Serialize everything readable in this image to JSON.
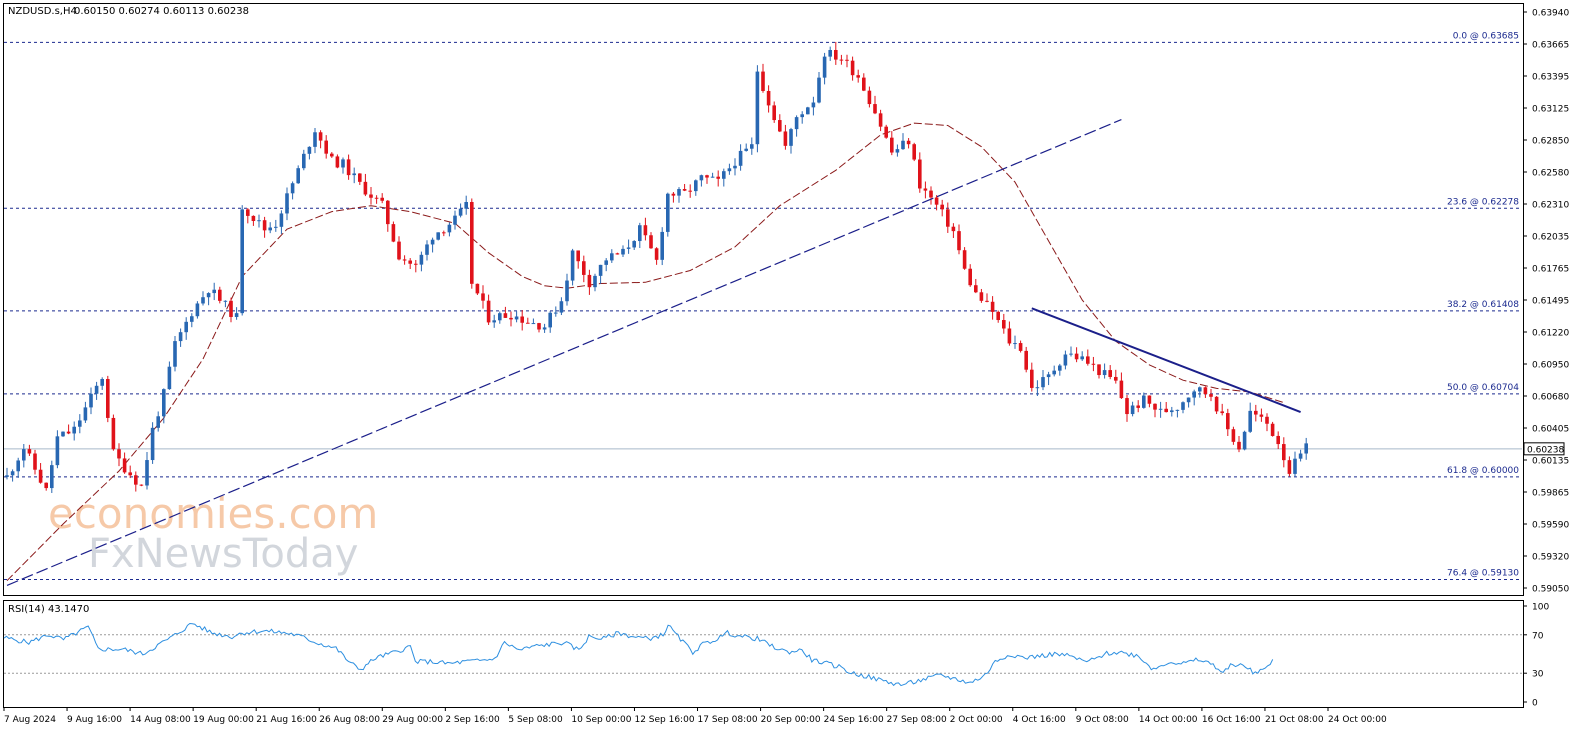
{
  "chart_data": [
    {
      "type": "candlestick",
      "header": {
        "symbol": "NZDUSD.s,H4",
        "ohlc": "0.60150 0.60274 0.60113 0.60238"
      },
      "current_price": 0.60238,
      "current_price_label": "0.60238",
      "ylim": [
        0.5899,
        0.6401
      ],
      "yticks": [
        "0.63940",
        "0.63665",
        "0.63395",
        "0.63125",
        "0.62850",
        "0.62580",
        "0.62310",
        "0.62035",
        "0.61765",
        "0.61495",
        "0.61220",
        "0.60950",
        "0.60680",
        "0.60405",
        "0.60135",
        "0.59865",
        "0.59590",
        "0.59320",
        "0.59050"
      ],
      "xticks": [
        "7 Aug 2024",
        "9 Aug 16:00",
        "14 Aug 08:00",
        "19 Aug 00:00",
        "21 Aug 16:00",
        "26 Aug 08:00",
        "29 Aug 00:00",
        "2 Sep 16:00",
        "5 Sep 08:00",
        "10 Sep 00:00",
        "12 Sep 16:00",
        "17 Sep 08:00",
        "20 Sep 00:00",
        "24 Sep 16:00",
        "27 Sep 08:00",
        "2 Oct 00:00",
        "4 Oct 16:00",
        "9 Oct 08:00",
        "14 Oct 00:00",
        "16 Oct 16:00",
        "21 Oct 08:00",
        "24 Oct 00:00"
      ],
      "fib_levels": [
        {
          "label": "0.0 @ 0.63685",
          "price": 0.63685
        },
        {
          "label": "23.6 @ 0.62278",
          "price": 0.62278
        },
        {
          "label": "38.2 @ 0.61408",
          "price": 0.61408
        },
        {
          "label": "50.0 @ 0.60704",
          "price": 0.60704
        },
        {
          "label": "61.8 @ 0.60000",
          "price": 0.6
        },
        {
          "label": "76.4 @ 0.59130",
          "price": 0.5913
        }
      ],
      "price_path": [
        [
          0,
          0.6
        ],
        [
          3,
          0.6025
        ],
        [
          7,
          0.5988
        ],
        [
          9,
          0.6033
        ],
        [
          12,
          0.604
        ],
        [
          17,
          0.6085
        ],
        [
          19,
          0.602
        ],
        [
          21,
          0.6008
        ],
        [
          24,
          0.5992
        ],
        [
          26,
          0.604
        ],
        [
          28,
          0.607
        ],
        [
          30,
          0.6112
        ],
        [
          33,
          0.614
        ],
        [
          36,
          0.616
        ],
        [
          38,
          0.615
        ],
        [
          41,
          0.6135
        ],
        [
          42,
          0.623
        ],
        [
          46,
          0.621
        ],
        [
          48,
          0.6215
        ],
        [
          52,
          0.626
        ],
        [
          55,
          0.6295
        ],
        [
          58,
          0.6268
        ],
        [
          60,
          0.6265
        ],
        [
          63,
          0.6248
        ],
        [
          67,
          0.623
        ],
        [
          70,
          0.6188
        ],
        [
          73,
          0.6178
        ],
        [
          76,
          0.6205
        ],
        [
          80,
          0.6218
        ],
        [
          82,
          0.6229
        ],
        [
          83,
          0.6165
        ],
        [
          86,
          0.6135
        ],
        [
          90,
          0.6138
        ],
        [
          93,
          0.6132
        ],
        [
          96,
          0.6128
        ],
        [
          99,
          0.615
        ],
        [
          101,
          0.619
        ],
        [
          104,
          0.6165
        ],
        [
          107,
          0.6185
        ],
        [
          110,
          0.619
        ],
        [
          113,
          0.621
        ],
        [
          116,
          0.6183
        ],
        [
          118,
          0.624
        ],
        [
          121,
          0.624
        ],
        [
          124,
          0.6253
        ],
        [
          127,
          0.625
        ],
        [
          130,
          0.6268
        ],
        [
          133,
          0.628
        ],
        [
          134,
          0.6345
        ],
        [
          136,
          0.6318
        ],
        [
          139,
          0.628
        ],
        [
          141,
          0.6305
        ],
        [
          144,
          0.632
        ],
        [
          146,
          0.636
        ],
        [
          149,
          0.6355
        ],
        [
          152,
          0.634
        ],
        [
          155,
          0.631
        ],
        [
          158,
          0.6275
        ],
        [
          161,
          0.6285
        ],
        [
          163,
          0.6248
        ],
        [
          166,
          0.623
        ],
        [
          169,
          0.6208
        ],
        [
          171,
          0.6175
        ],
        [
          173,
          0.6155
        ],
        [
          176,
          0.614
        ],
        [
          179,
          0.6115
        ],
        [
          181,
          0.611
        ],
        [
          183,
          0.6075
        ],
        [
          186,
          0.6085
        ],
        [
          189,
          0.6105
        ],
        [
          192,
          0.61
        ],
        [
          195,
          0.609
        ],
        [
          198,
          0.608
        ],
        [
          200,
          0.6055
        ],
        [
          203,
          0.6065
        ],
        [
          206,
          0.6055
        ],
        [
          209,
          0.606
        ],
        [
          212,
          0.6075
        ],
        [
          215,
          0.607
        ],
        [
          218,
          0.604
        ],
        [
          220,
          0.6025
        ],
        [
          222,
          0.6055
        ],
        [
          225,
          0.6045
        ],
        [
          227,
          0.603
        ],
        [
          229,
          0.6005
        ],
        [
          232,
          0.6024
        ]
      ],
      "moving_average_path": [
        [
          0,
          0.5912
        ],
        [
          10,
          0.596
        ],
        [
          20,
          0.6005
        ],
        [
          28,
          0.605
        ],
        [
          35,
          0.61
        ],
        [
          42,
          0.617
        ],
        [
          50,
          0.621
        ],
        [
          58,
          0.6225
        ],
        [
          65,
          0.623
        ],
        [
          72,
          0.6225
        ],
        [
          80,
          0.6215
        ],
        [
          86,
          0.619
        ],
        [
          92,
          0.617
        ],
        [
          96,
          0.6162
        ],
        [
          100,
          0.616
        ],
        [
          106,
          0.6164
        ],
        [
          114,
          0.6165
        ],
        [
          122,
          0.6175
        ],
        [
          130,
          0.6195
        ],
        [
          138,
          0.623
        ],
        [
          148,
          0.626
        ],
        [
          156,
          0.629
        ],
        [
          162,
          0.63
        ],
        [
          168,
          0.6298
        ],
        [
          174,
          0.628
        ],
        [
          180,
          0.625
        ],
        [
          186,
          0.62
        ],
        [
          192,
          0.615
        ],
        [
          198,
          0.6115
        ],
        [
          204,
          0.6095
        ],
        [
          210,
          0.6082
        ],
        [
          216,
          0.6075
        ],
        [
          222,
          0.6072
        ],
        [
          228,
          0.6063
        ]
      ],
      "trendlines": [
        {
          "style": "dashed",
          "from": [
            0,
            0.5908
          ],
          "to": [
            199,
            0.6303
          ]
        },
        {
          "style": "solid",
          "from": [
            183,
            0.6143
          ],
          "to": [
            231,
            0.6055
          ]
        }
      ],
      "watermark": {
        "line1": "economies.com",
        "line2": "FxNewsToday"
      }
    },
    {
      "type": "line",
      "label": "RSI(14) 43.1470",
      "ylim": [
        0,
        100
      ],
      "yticks": [
        "100",
        "70",
        "30",
        "0"
      ],
      "levels": [
        70,
        30
      ],
      "values_path": [
        [
          0,
          67
        ],
        [
          5,
          62
        ],
        [
          9,
          70
        ],
        [
          12,
          65
        ],
        [
          17,
          78
        ],
        [
          19,
          55
        ],
        [
          24,
          55
        ],
        [
          28,
          50
        ],
        [
          30,
          56
        ],
        [
          34,
          68
        ],
        [
          38,
          82
        ],
        [
          42,
          72
        ],
        [
          46,
          68
        ],
        [
          48,
          72
        ],
        [
          52,
          74
        ],
        [
          55,
          73
        ],
        [
          58,
          71
        ],
        [
          60,
          68
        ],
        [
          63,
          62
        ],
        [
          67,
          56
        ],
        [
          70,
          40
        ],
        [
          72,
          34
        ],
        [
          75,
          46
        ],
        [
          79,
          52
        ],
        [
          82,
          58
        ],
        [
          83,
          42
        ],
        [
          86,
          42
        ],
        [
          90,
          40
        ],
        [
          93,
          42
        ],
        [
          96,
          43
        ],
        [
          99,
          45
        ],
        [
          101,
          62
        ],
        [
          104,
          54
        ],
        [
          107,
          58
        ],
        [
          110,
          60
        ],
        [
          113,
          62
        ],
        [
          116,
          54
        ],
        [
          118,
          68
        ],
        [
          121,
          66
        ],
        [
          124,
          72
        ],
        [
          127,
          68
        ],
        [
          130,
          66
        ],
        [
          133,
          70
        ],
        [
          134,
          80
        ],
        [
          136,
          68
        ],
        [
          139,
          52
        ],
        [
          141,
          60
        ],
        [
          144,
          66
        ],
        [
          146,
          72
        ],
        [
          149,
          68
        ],
        [
          152,
          66
        ],
        [
          155,
          58
        ],
        [
          158,
          52
        ],
        [
          161,
          54
        ],
        [
          163,
          44
        ],
        [
          166,
          40
        ],
        [
          169,
          36
        ],
        [
          171,
          30
        ],
        [
          173,
          28
        ],
        [
          176,
          24
        ],
        [
          179,
          20
        ],
        [
          181,
          18
        ],
        [
          183,
          20
        ],
        [
          186,
          24
        ],
        [
          189,
          28
        ],
        [
          192,
          24
        ],
        [
          195,
          20
        ],
        [
          198,
          28
        ],
        [
          200,
          42
        ],
        [
          203,
          50
        ],
        [
          206,
          46
        ],
        [
          209,
          48
        ],
        [
          212,
          50
        ],
        [
          215,
          48
        ],
        [
          218,
          42
        ],
        [
          220,
          44
        ],
        [
          222,
          50
        ],
        [
          225,
          52
        ],
        [
          227,
          50
        ],
        [
          229,
          48
        ],
        [
          231,
          38
        ],
        [
          232,
          34
        ],
        [
          235,
          42
        ],
        [
          238,
          40
        ],
        [
          241,
          44
        ],
        [
          244,
          39
        ],
        [
          246,
          30
        ],
        [
          248,
          40
        ],
        [
          251,
          36
        ],
        [
          252,
          30
        ],
        [
          255,
          36
        ],
        [
          256,
          43
        ]
      ]
    }
  ]
}
